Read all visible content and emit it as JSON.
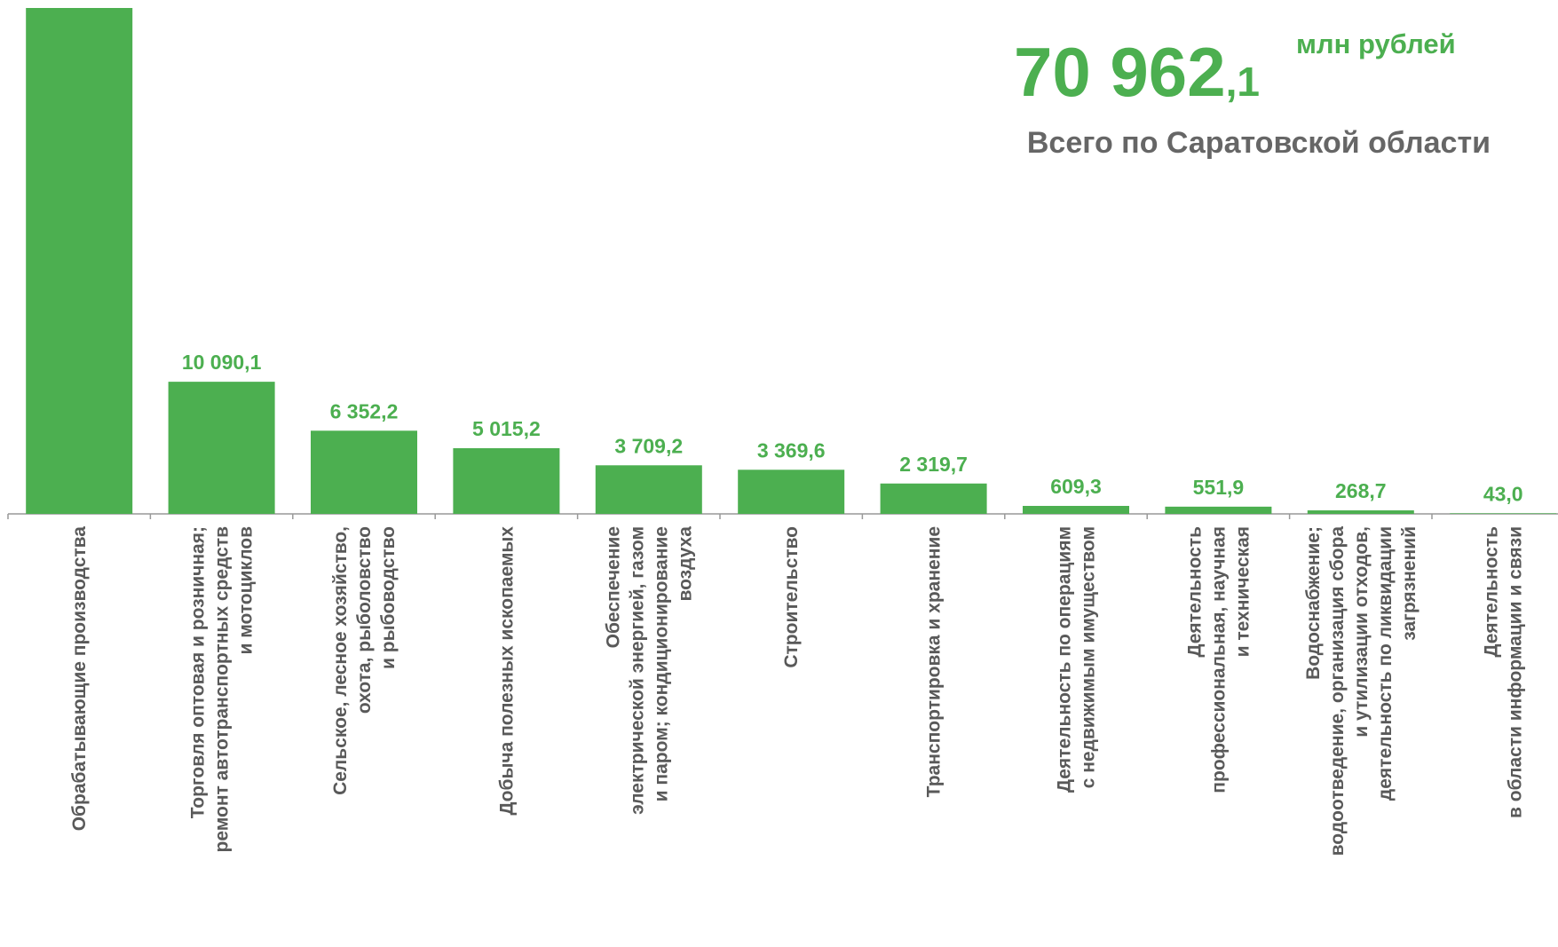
{
  "chart_data": {
    "type": "bar",
    "total": "70 962,1",
    "unit": "млн рублей",
    "subtitle": "Всего по Саратовской области",
    "color": "#4caf50",
    "categories": [
      "Обрабатывающие производства",
      "Торговля оптовая и розничная;\nремонт автотранспортных средств\nи мотоциклов",
      "Сельское, лесное хозяйство,\nохота, рыболовство\nи  рыбоводство",
      "Добыча полезных ископаемых",
      "Обеспечение\nэлектрической энергией, газом\nи паром; кондиционирование\nвоздуха",
      "Строительство",
      "Транспортировка и хранение",
      "Деятельность по операциям\nс недвижимым имуществом",
      "Деятельность\nпрофессиональная, научная\nи техническая",
      "Водоснабжение;\nводоотведение, организация сбора\nи утилизации отходов,\nдеятельность по ликвидации\nзагрязнений",
      "Деятельность\nв области информации и связи"
    ],
    "values": [
      38633.2,
      10090.1,
      6352.2,
      5015.2,
      3709.2,
      3369.6,
      2319.7,
      609.3,
      551.9,
      268.7,
      43.0
    ],
    "value_labels": [
      null,
      "10 090,1",
      "6 352,2",
      "5 015,2",
      "3 709,2",
      "3 369,6",
      "2 319,7",
      "609,3",
      "551,9",
      "268,7",
      "43,0"
    ]
  }
}
